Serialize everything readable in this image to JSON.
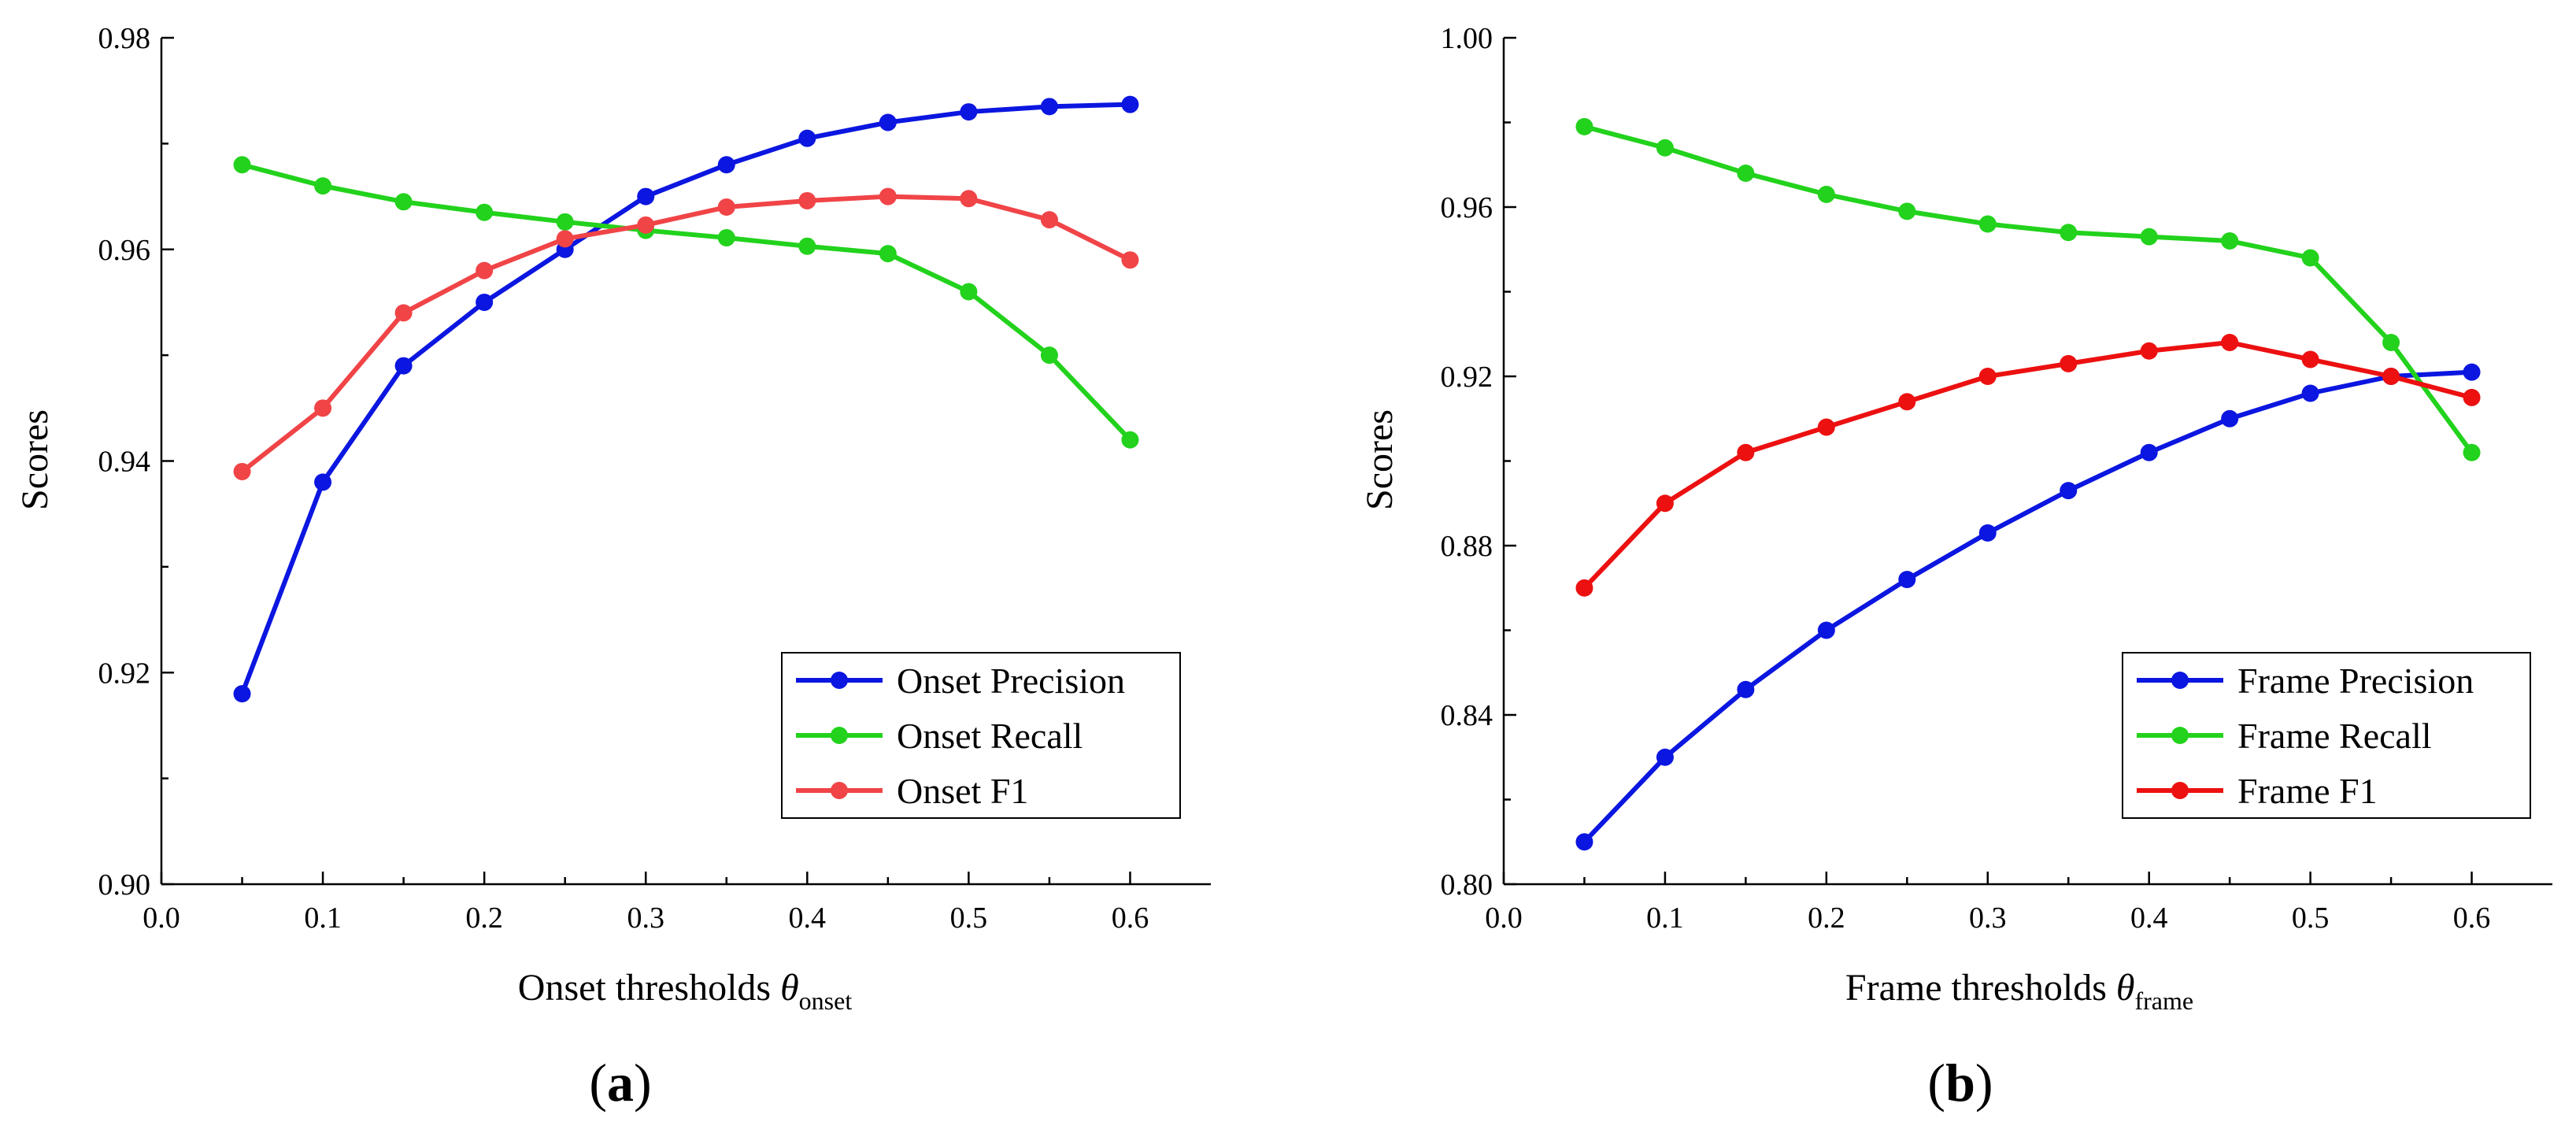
{
  "chart_data": [
    {
      "type": "line",
      "panel_label": "a",
      "xlabel": "Onset thresholds",
      "xlabel_symbol": "θ",
      "xlabel_subscript": "onset",
      "ylabel": "Scores",
      "xlim": [
        0.0,
        0.65
      ],
      "ylim": [
        0.9,
        0.98
      ],
      "xticks": [
        "0.0",
        "0.1",
        "0.2",
        "0.3",
        "0.4",
        "0.5",
        "0.6"
      ],
      "yticks": [
        "0.90",
        "0.92",
        "0.94",
        "0.96",
        "0.98"
      ],
      "x": [
        0.05,
        0.1,
        0.15,
        0.2,
        0.25,
        0.3,
        0.35,
        0.4,
        0.45,
        0.5,
        0.55,
        0.6
      ],
      "legend_position": "bottom-right",
      "series": [
        {
          "name": "Onset Precision",
          "color": "#0b16e0",
          "values": [
            0.918,
            0.938,
            0.949,
            0.955,
            0.96,
            0.965,
            0.968,
            0.9705,
            0.972,
            0.973,
            0.9735,
            0.9737
          ]
        },
        {
          "name": "Onset Recall",
          "color": "#22d21c",
          "values": [
            0.968,
            0.966,
            0.9645,
            0.9635,
            0.9626,
            0.9618,
            0.9611,
            0.9603,
            0.9596,
            0.956,
            0.95,
            0.942
          ]
        },
        {
          "name": "Onset F1",
          "color": "#f04447",
          "values": [
            0.939,
            0.945,
            0.954,
            0.958,
            0.961,
            0.9623,
            0.964,
            0.9646,
            0.965,
            0.9648,
            0.9628,
            0.959
          ]
        }
      ]
    },
    {
      "type": "line",
      "panel_label": "b",
      "xlabel": "Frame thresholds",
      "xlabel_symbol": "θ",
      "xlabel_subscript": "frame",
      "ylabel": "Scores",
      "xlim": [
        0.0,
        0.65
      ],
      "ylim": [
        0.8,
        1.0
      ],
      "xticks": [
        "0.0",
        "0.1",
        "0.2",
        "0.3",
        "0.4",
        "0.5",
        "0.6"
      ],
      "yticks": [
        "0.80",
        "0.84",
        "0.88",
        "0.92",
        "0.96",
        "1.00"
      ],
      "x": [
        0.05,
        0.1,
        0.15,
        0.2,
        0.25,
        0.3,
        0.35,
        0.4,
        0.45,
        0.5,
        0.55,
        0.6
      ],
      "legend_position": "bottom-right",
      "series": [
        {
          "name": "Frame Precision",
          "color": "#0b16e0",
          "values": [
            0.81,
            0.83,
            0.846,
            0.86,
            0.872,
            0.883,
            0.893,
            0.902,
            0.91,
            0.916,
            0.92,
            0.921
          ]
        },
        {
          "name": "Frame Recall",
          "color": "#22d21c",
          "values": [
            0.979,
            0.974,
            0.968,
            0.963,
            0.959,
            0.956,
            0.954,
            0.953,
            0.952,
            0.948,
            0.928,
            0.902
          ]
        },
        {
          "name": "Frame F1",
          "color": "#ec1010",
          "values": [
            0.87,
            0.89,
            0.902,
            0.908,
            0.914,
            0.92,
            0.923,
            0.926,
            0.928,
            0.924,
            0.92,
            0.915
          ]
        }
      ]
    }
  ]
}
